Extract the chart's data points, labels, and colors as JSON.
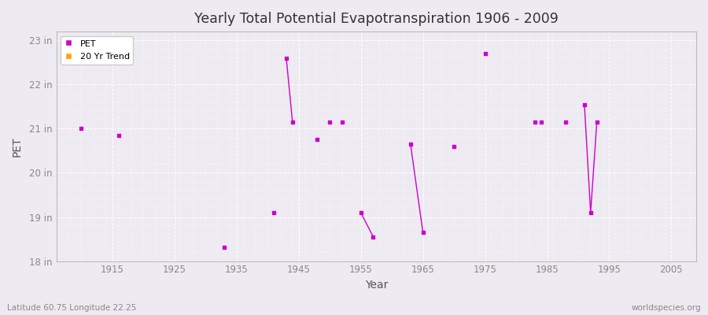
{
  "title": "Yearly Total Potential Evapotranspiration 1906 - 2009",
  "xlabel": "Year",
  "ylabel": "PET",
  "xlim": [
    1906,
    2009
  ],
  "ylim": [
    18.0,
    23.2
  ],
  "yticks": [
    18,
    19,
    20,
    21,
    22,
    23
  ],
  "ytick_labels": [
    "18 in",
    "19 in",
    "20 in",
    "21 in",
    "22 in",
    "23 in"
  ],
  "xticks": [
    1915,
    1925,
    1935,
    1945,
    1955,
    1965,
    1975,
    1985,
    1995,
    2005
  ],
  "background_color": "#edeaf1",
  "plot_background": "#edeaf1",
  "grid_color": "#ffffff",
  "pet_color": "#cc00cc",
  "trend_color": "#ffa500",
  "pet_data": [
    [
      1910,
      21.0
    ],
    [
      1916,
      20.85
    ],
    [
      1933,
      18.32
    ],
    [
      1941,
      19.1
    ],
    [
      1943,
      22.6
    ],
    [
      1944,
      21.15
    ],
    [
      1948,
      20.75
    ],
    [
      1950,
      21.15
    ],
    [
      1952,
      21.15
    ],
    [
      1955,
      19.1
    ],
    [
      1957,
      18.55
    ],
    [
      1963,
      20.65
    ],
    [
      1965,
      18.65
    ],
    [
      1970,
      20.6
    ],
    [
      1975,
      22.7
    ],
    [
      1983,
      21.15
    ],
    [
      1984,
      21.15
    ],
    [
      1988,
      21.15
    ],
    [
      1991,
      21.55
    ],
    [
      1992,
      19.1
    ],
    [
      1993,
      21.15
    ]
  ],
  "pet_lines": [
    [
      [
        1943,
        22.6
      ],
      [
        1944,
        21.15
      ]
    ],
    [
      [
        1955,
        19.1
      ],
      [
        1957,
        18.55
      ]
    ],
    [
      [
        1963,
        20.65
      ],
      [
        1965,
        18.65
      ]
    ],
    [
      [
        1991,
        21.55
      ],
      [
        1992,
        19.1
      ],
      [
        1993,
        21.15
      ]
    ]
  ],
  "footnote_left": "Latitude 60.75 Longitude 22.25",
  "footnote_right": "worldspecies.org",
  "legend_entries": [
    "PET",
    "20 Yr Trend"
  ]
}
